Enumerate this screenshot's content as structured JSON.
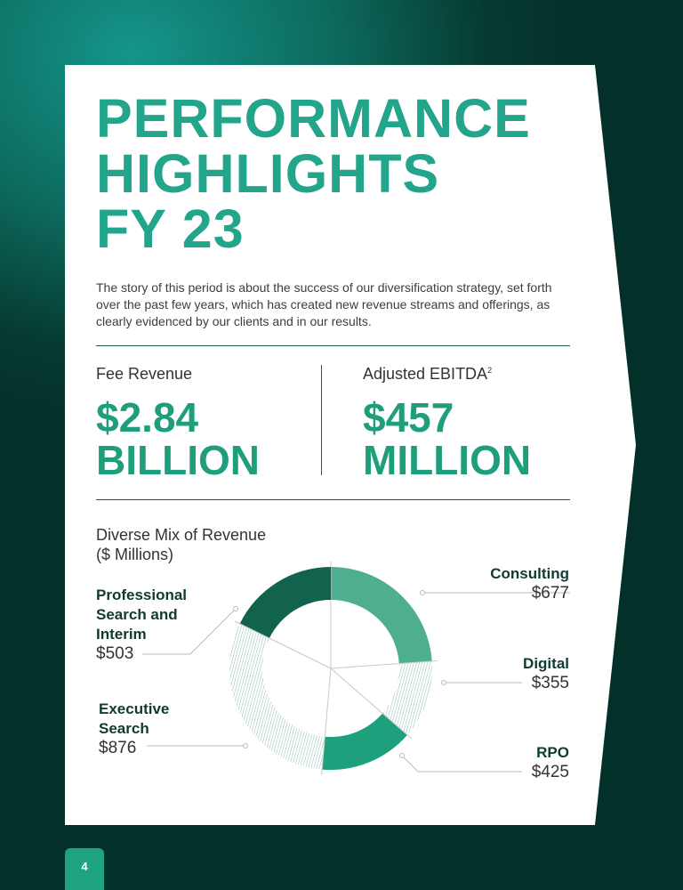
{
  "title_lines": [
    "PERFORMANCE",
    "HIGHLIGHTS",
    "FY 23"
  ],
  "intro": "The story of this period is about the success of our diversification strategy, set forth over the past few years, which has created new revenue streams and offerings, as clearly evidenced by our clients and in our results.",
  "kpis": [
    {
      "label": "Fee Revenue",
      "sup": "",
      "value_lines": [
        "$2.84",
        "BILLION"
      ]
    },
    {
      "label": "Adjusted EBITDA",
      "sup": "2",
      "value_lines": [
        "$457",
        "MILLION"
      ]
    }
  ],
  "page_number": "4",
  "chart_data": {
    "type": "pie",
    "donut": true,
    "title_lines": [
      "Diverse Mix of Revenue",
      "($ Millions)"
    ],
    "categories": [
      "Consulting",
      "Digital",
      "RPO",
      "Executive Search",
      "Professional Search and Interim"
    ],
    "values": [
      677,
      355,
      425,
      876,
      503
    ],
    "value_labels": [
      "$677",
      "$355",
      "$425",
      "$876",
      "$503"
    ],
    "fills": [
      "#4fae8f",
      "hatch",
      "#1fa07c",
      "hatch",
      "#11634e"
    ],
    "hatch_color": "#6aa89a"
  }
}
